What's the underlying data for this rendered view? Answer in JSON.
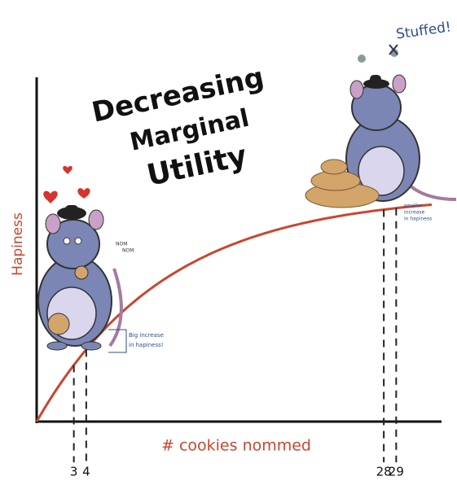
{
  "chart_data": {
    "type": "line",
    "title_lines": [
      "Decreasing",
      "Marginal",
      "Utility"
    ],
    "x_label": "# cookies nommed",
    "y_label": "Hapiness",
    "xlim": [
      0,
      32
    ],
    "xticks": [
      3,
      4,
      28,
      29
    ],
    "annotations": {
      "stuffed": "Stuffed!",
      "nom": [
        "NOM",
        "NOM"
      ],
      "big_increase": [
        "Big increase",
        "in hapiness!"
      ],
      "smaller_increase": [
        "smaller",
        "increase",
        "in hapiness"
      ]
    }
  }
}
